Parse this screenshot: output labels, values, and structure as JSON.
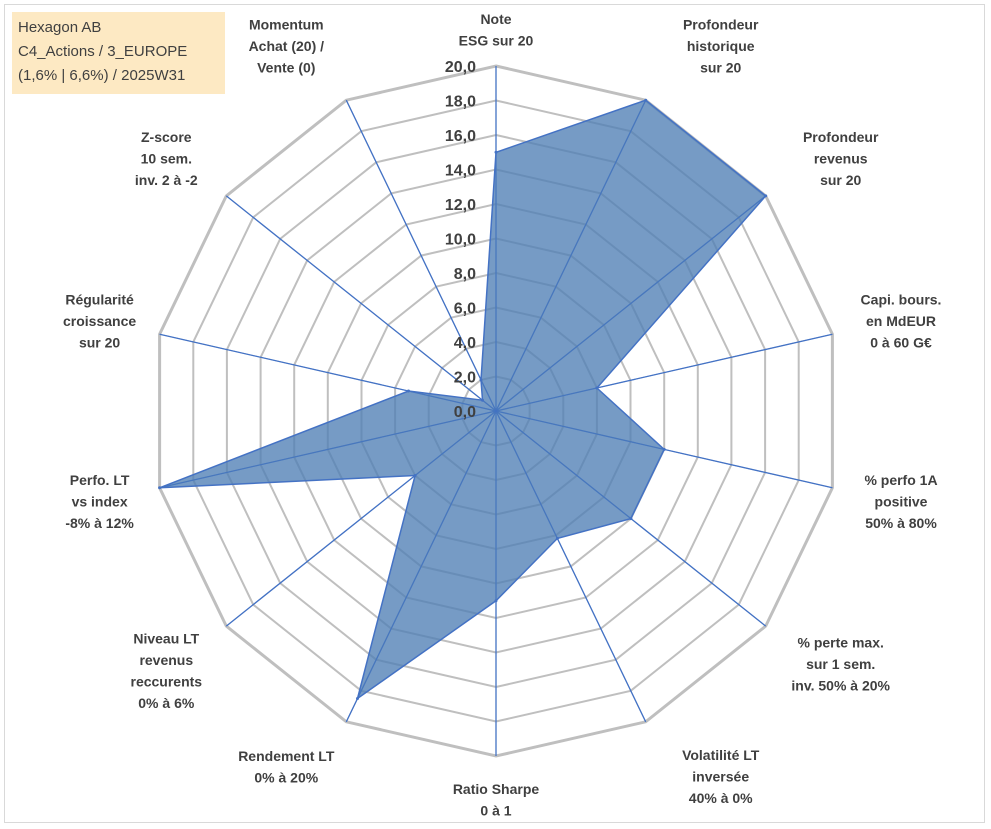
{
  "info_box": {
    "line1": "Hexagon AB",
    "line2": "C4_Actions / 3_EUROPE",
    "line3": "(1,6% | 6,6%) / 2025W31"
  },
  "chart_data": {
    "type": "radar",
    "title": "",
    "range": [
      0,
      20
    ],
    "tick_step": 2,
    "tick_labels": [
      "0,0",
      "2,0",
      "4,0",
      "6,0",
      "8,0",
      "10,0",
      "12,0",
      "14,0",
      "16,0",
      "18,0",
      "20,0"
    ],
    "grid": true,
    "fill_color": "#4f7fb5",
    "line_color": "#4472c4",
    "grid_color": "#bfbfbf",
    "axes": [
      {
        "label": [
          "Note",
          "ESG sur 20"
        ],
        "value": 15.0
      },
      {
        "label": [
          "Profondeur",
          "historique",
          "sur 20"
        ],
        "value": 20.0
      },
      {
        "label": [
          "Profondeur",
          "revenus",
          "sur 20"
        ],
        "value": 20.0
      },
      {
        "label": [
          "Capi. bours.",
          "en MdEUR",
          "0 à 60 G€"
        ],
        "value": 6.0
      },
      {
        "label": [
          "% perfo 1A",
          "positive",
          "50% à 80%"
        ],
        "value": 10.0
      },
      {
        "label": [
          "% perte max.",
          "sur 1 sem.",
          "inv. 50% à 20%"
        ],
        "value": 10.0
      },
      {
        "label": [
          "Volatilité LT",
          "inversée",
          "40% à 0%"
        ],
        "value": 8.2
      },
      {
        "label": [
          "Ratio Sharpe",
          "0 à 1"
        ],
        "value": 11.0
      },
      {
        "label": [
          "Rendement LT",
          "0% à 20%"
        ],
        "value": 18.5
      },
      {
        "label": [
          "Niveau LT",
          "revenus",
          "reccurents",
          "0% à 6%"
        ],
        "value": 6.0
      },
      {
        "label": [
          "Perfo. LT",
          "vs index",
          "-8% à 12%"
        ],
        "value": 20.0
      },
      {
        "label": [
          "Régularité",
          "croissance",
          "sur 20"
        ],
        "value": 5.2
      },
      {
        "label": [
          "Z-score",
          "10 sem.",
          "inv. 2 à -2"
        ],
        "value": 1.0
      },
      {
        "label": [
          "Momentum",
          "Achat (20) /",
          "Vente (0)"
        ],
        "value": 2.0
      }
    ]
  }
}
